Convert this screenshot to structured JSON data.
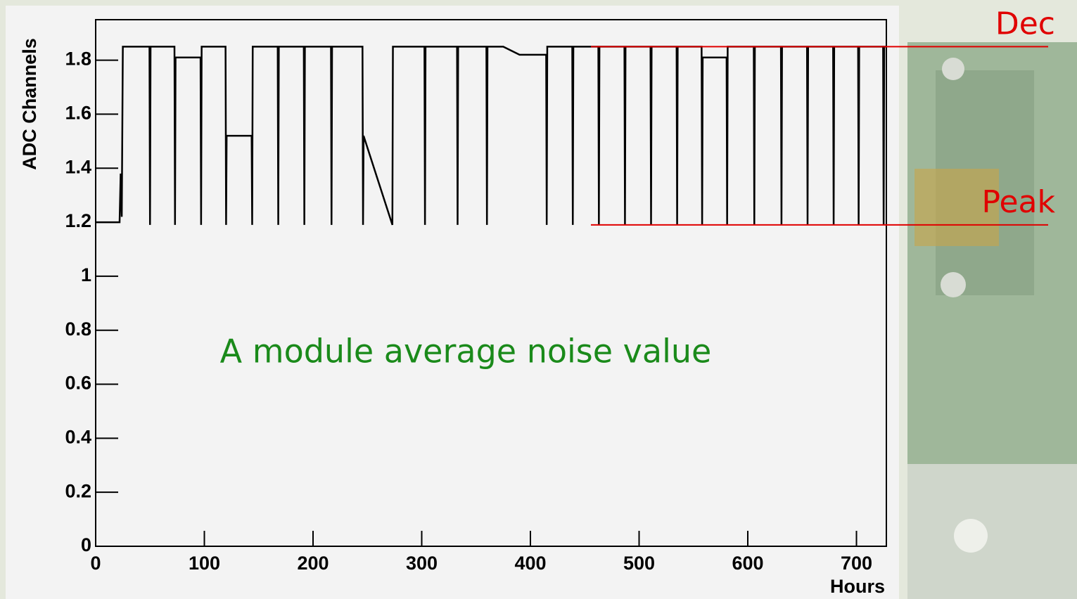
{
  "chart_data": {
    "type": "line",
    "y_label": "ADC Channels",
    "x_label": "Hours",
    "annotation": "A module average noise value",
    "ref_lines": [
      {
        "label": "Dec",
        "value": 1.85,
        "color": "#e00000"
      },
      {
        "label": "Peak",
        "value": 1.19,
        "color": "#e00000"
      }
    ],
    "xlim": [
      0,
      727.5
    ],
    "ylim": [
      0,
      1.95
    ],
    "xticks": [
      0,
      100,
      200,
      300,
      400,
      500,
      600,
      700
    ],
    "yticks": [
      0,
      0.2,
      0.4,
      0.6,
      0.8,
      1,
      1.2,
      1.4,
      1.6,
      1.8
    ],
    "x": [
      0,
      22,
      23,
      24,
      25,
      49.5,
      50,
      50.5,
      72.5,
      73,
      73.5,
      96.5,
      97,
      97.5,
      119.5,
      120,
      120.5,
      143.5,
      144,
      144.5,
      167.5,
      168,
      168.5,
      191.5,
      192,
      192.5,
      216.5,
      217,
      217.5,
      245.5,
      246,
      246.5,
      273,
      273.5,
      302.5,
      303,
      303.5,
      332.5,
      333,
      333.5,
      359.5,
      360,
      360.5,
      375,
      390,
      414.5,
      415,
      415.5,
      438.5,
      439,
      439.5,
      462.5,
      463,
      463.5,
      486.5,
      487,
      487.5,
      510.5,
      511,
      511.5,
      534.5,
      535,
      535.5,
      557.5,
      558,
      558.5,
      580.5,
      581,
      581.5,
      605.5,
      606,
      606.5,
      630.5,
      631,
      631.5,
      654.5,
      655,
      655.5,
      678.5,
      679,
      679.5,
      701.5,
      702,
      702.5,
      724.5,
      725,
      725.5,
      727
    ],
    "values": [
      1.2,
      1.2,
      1.38,
      1.22,
      1.85,
      1.85,
      1.19,
      1.85,
      1.85,
      1.19,
      1.81,
      1.81,
      1.19,
      1.85,
      1.85,
      1.19,
      1.52,
      1.52,
      1.19,
      1.85,
      1.85,
      1.19,
      1.85,
      1.85,
      1.19,
      1.85,
      1.85,
      1.19,
      1.85,
      1.85,
      1.19,
      1.52,
      1.19,
      1.85,
      1.85,
      1.19,
      1.85,
      1.85,
      1.19,
      1.85,
      1.85,
      1.19,
      1.85,
      1.85,
      1.82,
      1.82,
      1.19,
      1.85,
      1.85,
      1.19,
      1.85,
      1.85,
      1.19,
      1.85,
      1.85,
      1.19,
      1.85,
      1.85,
      1.19,
      1.85,
      1.85,
      1.19,
      1.85,
      1.85,
      1.19,
      1.81,
      1.81,
      1.19,
      1.85,
      1.85,
      1.19,
      1.85,
      1.85,
      1.19,
      1.85,
      1.85,
      1.19,
      1.85,
      1.85,
      1.19,
      1.85,
      1.85,
      1.19,
      1.85,
      1.85,
      1.19,
      1.85,
      1.85
    ],
    "color": "#000000"
  }
}
